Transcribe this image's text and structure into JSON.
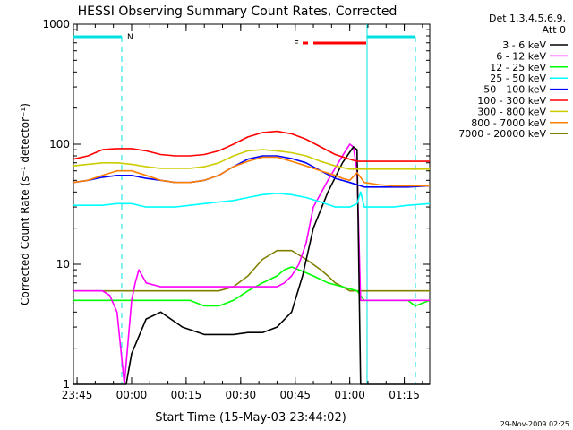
{
  "chart_data": {
    "type": "line",
    "title": "HESSI Observing Summary Count Rates, Corrected",
    "xlabel": "Start Time (15-May-03 23:44:02)",
    "ylabel": "Corrected Count Rate (s⁻¹ detector⁻¹)",
    "y_scale": "log",
    "ylim": [
      1,
      1000
    ],
    "xlim_minutes_from_start": [
      0,
      98
    ],
    "x_ticks": [
      {
        "label": "23:45",
        "minute": 1
      },
      {
        "label": "00:00",
        "minute": 16
      },
      {
        "label": "00:15",
        "minute": 31
      },
      {
        "label": "00:30",
        "minute": 46
      },
      {
        "label": "00:45",
        "minute": 61
      },
      {
        "label": "01:00",
        "minute": 76
      },
      {
        "label": "01:15",
        "minute": 91
      }
    ],
    "y_ticks": [
      {
        "label": "1",
        "value": 1
      },
      {
        "label": "10",
        "value": 10
      },
      {
        "label": "100",
        "value": 100
      },
      {
        "label": "1000",
        "value": 1000
      }
    ],
    "legend_header": [
      "Det 1,3,4,5,6,9,",
      "Att 0"
    ],
    "legend_position": "right",
    "series": [
      {
        "name": "3 - 6 keV",
        "color": "#000000",
        "x": [
          0,
          14,
          14.5,
          16,
          20,
          24,
          30,
          36,
          40,
          44,
          48,
          52,
          56,
          60,
          63,
          66,
          70,
          74,
          77,
          78,
          79,
          80,
          84,
          88,
          94,
          98
        ],
        "y": [
          1,
          1,
          1,
          1.8,
          3.5,
          4,
          3,
          2.6,
          2.6,
          2.6,
          2.7,
          2.7,
          3,
          4,
          8,
          20,
          40,
          70,
          95,
          90,
          1,
          1,
          1,
          1,
          1,
          1
        ]
      },
      {
        "name": "6 - 12 keV",
        "color": "#ff00ff",
        "x": [
          0,
          4,
          8,
          10,
          12,
          14,
          16,
          17,
          18,
          20,
          24,
          30,
          36,
          40,
          44,
          48,
          52,
          56,
          58,
          60,
          62,
          64,
          66,
          70,
          74,
          76,
          77,
          78,
          79,
          80,
          84,
          88,
          94,
          98
        ],
        "y": [
          6,
          6,
          6,
          5.5,
          4,
          1,
          5,
          7,
          9,
          7,
          6.5,
          6.5,
          6.5,
          6.5,
          6.5,
          6.5,
          6.5,
          6.5,
          7,
          8,
          10,
          15,
          30,
          50,
          80,
          100,
          95,
          60,
          5,
          5,
          5,
          5,
          5,
          5
        ]
      },
      {
        "name": "12 - 25 keV",
        "color": "#00ff00",
        "x": [
          0,
          4,
          8,
          12,
          16,
          20,
          24,
          28,
          32,
          36,
          40,
          44,
          48,
          52,
          56,
          58,
          60,
          62,
          64,
          66,
          70,
          74,
          78,
          80,
          84,
          88,
          92,
          94,
          98
        ],
        "y": [
          5,
          5,
          5,
          5,
          5,
          5,
          5,
          5,
          5,
          4.5,
          4.5,
          5,
          6,
          7,
          8,
          9,
          9.5,
          9,
          8.5,
          8,
          7,
          6.5,
          6,
          5,
          5,
          5,
          5,
          4.5,
          5
        ]
      },
      {
        "name": "25 - 50 keV",
        "color": "#00ffff",
        "x": [
          0,
          4,
          8,
          12,
          16,
          20,
          24,
          28,
          32,
          36,
          40,
          44,
          48,
          52,
          56,
          60,
          64,
          68,
          72,
          76,
          78,
          79,
          80,
          84,
          88,
          92,
          98
        ],
        "y": [
          31,
          31,
          31,
          32,
          32,
          30,
          30,
          30,
          31,
          32,
          33,
          34,
          36,
          38,
          39,
          38,
          36,
          33,
          30,
          30,
          32,
          40,
          30,
          30,
          30,
          31,
          32
        ]
      },
      {
        "name": "50 - 100 keV",
        "color": "#0000ff",
        "x": [
          0,
          4,
          8,
          12,
          16,
          20,
          24,
          28,
          32,
          36,
          40,
          44,
          48,
          52,
          56,
          60,
          64,
          68,
          72,
          76,
          78,
          80,
          84,
          88,
          92,
          98
        ],
        "y": [
          48,
          50,
          53,
          55,
          55,
          52,
          50,
          48,
          48,
          50,
          55,
          65,
          75,
          80,
          80,
          76,
          70,
          60,
          52,
          48,
          46,
          44,
          44,
          44,
          44,
          45
        ]
      },
      {
        "name": "100 - 300 keV",
        "color": "#ff0000",
        "x": [
          0,
          4,
          8,
          12,
          16,
          20,
          24,
          28,
          32,
          36,
          40,
          44,
          48,
          52,
          56,
          60,
          64,
          68,
          72,
          76,
          78,
          80,
          84,
          88,
          92,
          98
        ],
        "y": [
          75,
          80,
          90,
          92,
          92,
          88,
          82,
          80,
          80,
          82,
          88,
          100,
          115,
          125,
          128,
          122,
          110,
          95,
          82,
          75,
          72,
          72,
          72,
          72,
          72,
          72
        ]
      },
      {
        "name": "300 - 800 keV",
        "color": "#cccc00",
        "x": [
          0,
          4,
          8,
          12,
          16,
          20,
          24,
          28,
          32,
          36,
          40,
          44,
          48,
          52,
          56,
          60,
          64,
          68,
          72,
          76,
          78,
          80,
          84,
          88,
          92,
          98
        ],
        "y": [
          66,
          68,
          70,
          70,
          68,
          65,
          63,
          63,
          63,
          65,
          70,
          80,
          88,
          90,
          88,
          85,
          80,
          72,
          66,
          62,
          62,
          62,
          62,
          62,
          62,
          62
        ]
      },
      {
        "name": "800 - 7000 keV",
        "color": "#ff8000",
        "x": [
          0,
          4,
          8,
          12,
          16,
          20,
          24,
          28,
          32,
          36,
          40,
          44,
          48,
          52,
          56,
          60,
          64,
          68,
          72,
          74,
          76,
          78,
          80,
          84,
          88,
          92,
          98
        ],
        "y": [
          48,
          50,
          55,
          60,
          60,
          55,
          50,
          48,
          48,
          50,
          55,
          65,
          72,
          78,
          78,
          72,
          66,
          60,
          55,
          52,
          50,
          58,
          48,
          46,
          45,
          45,
          45
        ]
      },
      {
        "name": "7000 - 20000 keV",
        "color": "#808000",
        "x": [
          0,
          4,
          8,
          12,
          16,
          20,
          24,
          28,
          32,
          36,
          40,
          44,
          48,
          52,
          56,
          60,
          64,
          68,
          70,
          72,
          74,
          76,
          78,
          80,
          84,
          88,
          92,
          94,
          98
        ],
        "y": [
          6,
          6,
          6,
          6,
          6,
          6,
          6,
          6,
          6,
          6,
          6,
          6.5,
          8,
          11,
          13,
          13,
          11,
          9,
          8,
          7,
          6.5,
          6,
          6,
          6,
          6,
          6,
          6,
          6,
          6
        ]
      }
    ],
    "annotations": [
      {
        "text": "N",
        "color": "#00e0e0"
      },
      {
        "text": "F",
        "color": "#ff0000"
      }
    ],
    "footer_timestamp": "29-Nov-2009 02:25",
    "grid": false
  }
}
